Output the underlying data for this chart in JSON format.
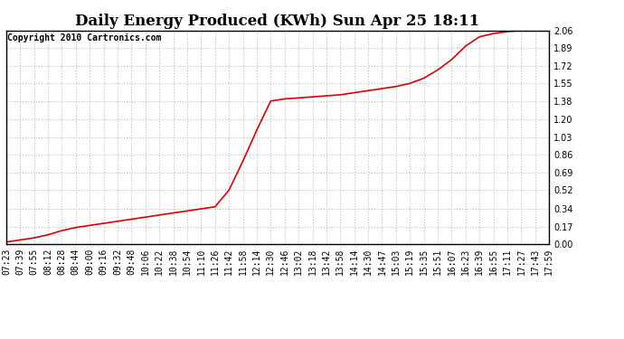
{
  "title": "Daily Energy Produced (KWh) Sun Apr 25 18:11",
  "copyright": "Copyright 2010 Cartronics.com",
  "line_color": "#dd0000",
  "line_width": 1.2,
  "bg_color": "#ffffff",
  "plot_bg_color": "#ffffff",
  "grid_color": "#bbbbbb",
  "ylim": [
    0.0,
    2.06
  ],
  "yticks": [
    0.0,
    0.17,
    0.34,
    0.52,
    0.69,
    0.86,
    1.03,
    1.2,
    1.38,
    1.55,
    1.72,
    1.89,
    2.06
  ],
  "xtick_labels": [
    "07:23",
    "07:39",
    "07:55",
    "08:12",
    "08:28",
    "08:44",
    "09:00",
    "09:16",
    "09:32",
    "09:48",
    "10:06",
    "10:22",
    "10:38",
    "10:54",
    "11:10",
    "11:26",
    "11:42",
    "11:58",
    "12:14",
    "12:30",
    "12:46",
    "13:02",
    "13:18",
    "13:42",
    "13:58",
    "14:14",
    "14:30",
    "14:47",
    "15:03",
    "15:19",
    "15:35",
    "15:51",
    "16:07",
    "16:23",
    "16:39",
    "16:55",
    "17:11",
    "17:27",
    "17:43",
    "17:59"
  ],
  "y_values": [
    0.02,
    0.04,
    0.06,
    0.09,
    0.13,
    0.16,
    0.18,
    0.2,
    0.22,
    0.24,
    0.26,
    0.28,
    0.3,
    0.32,
    0.34,
    0.36,
    0.52,
    0.8,
    1.1,
    1.38,
    1.4,
    1.41,
    1.42,
    1.43,
    1.44,
    1.46,
    1.48,
    1.5,
    1.52,
    1.55,
    1.6,
    1.68,
    1.78,
    1.91,
    2.0,
    2.03,
    2.05,
    2.06,
    2.06,
    2.06
  ],
  "title_fontsize": 12,
  "tick_fontsize": 7,
  "copyright_fontsize": 7
}
